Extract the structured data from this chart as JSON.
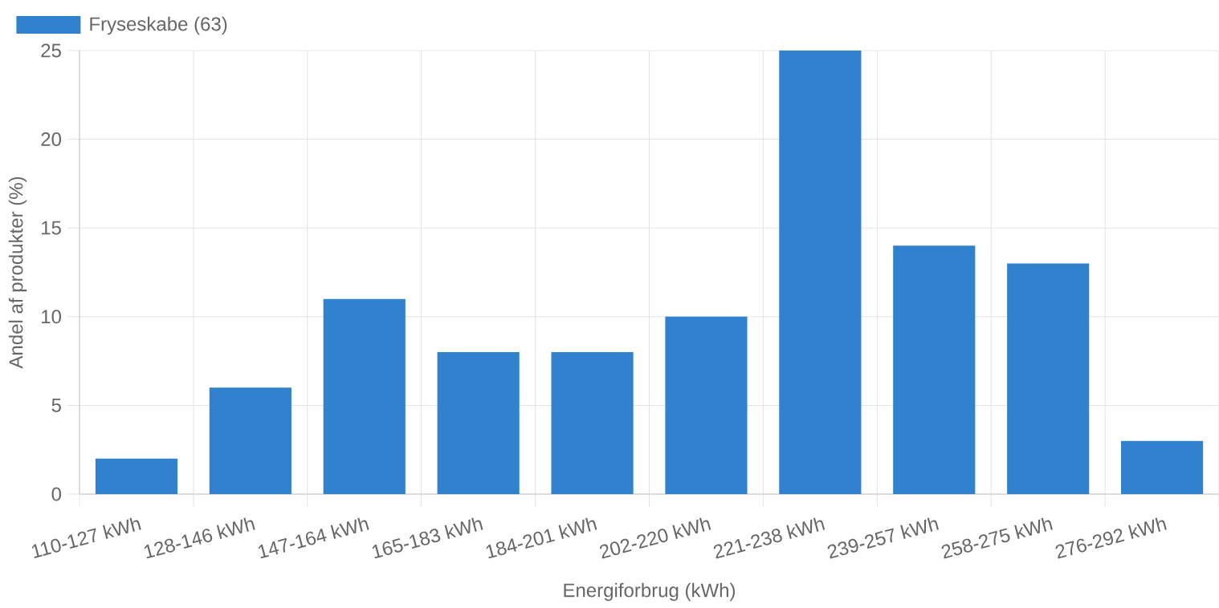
{
  "chart_data": {
    "type": "bar",
    "xlabel": "Energiforbrug (kWh)",
    "ylabel": "Andel af produkter (%)",
    "categories": [
      "110-127 kWh",
      "128-146 kWh",
      "147-164 kWh",
      "165-183 kWh",
      "184-201 kWh",
      "202-220 kWh",
      "221-238 kWh",
      "239-257 kWh",
      "258-275 kWh",
      "276-292 kWh"
    ],
    "series": [
      {
        "name": "Fryseskabe (63)",
        "color": "#3182ce",
        "values": [
          2,
          6,
          11,
          8,
          8,
          10,
          25,
          14,
          13,
          3
        ]
      }
    ],
    "ylim": [
      0,
      25
    ],
    "yticks": [
      0,
      5,
      10,
      15,
      20,
      25
    ],
    "grid": true,
    "legend": "top left"
  }
}
